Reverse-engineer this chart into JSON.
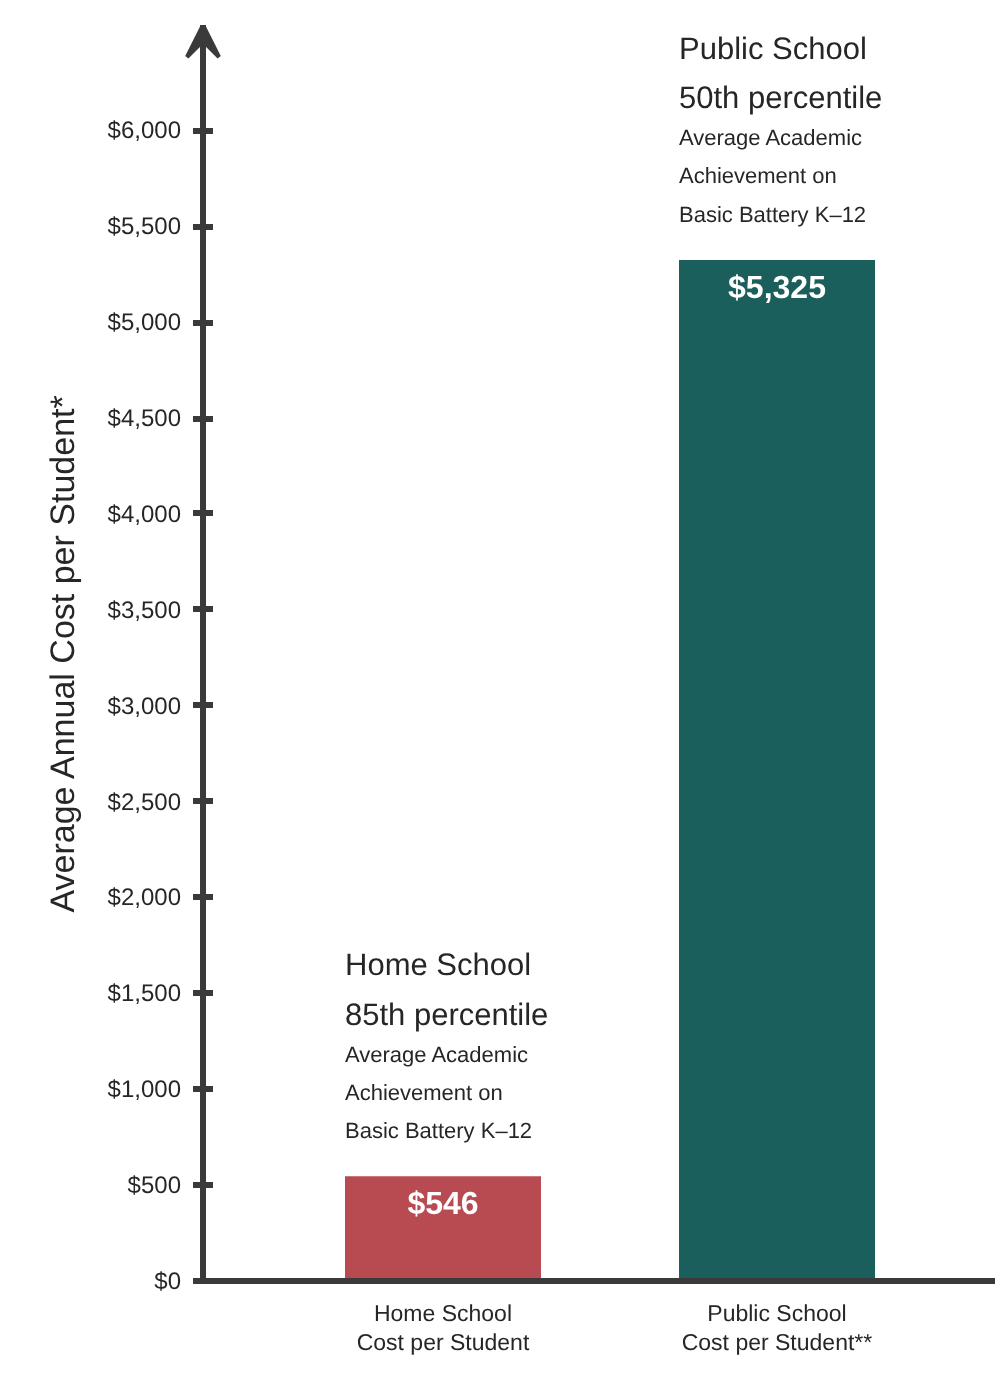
{
  "chart_data": {
    "type": "bar",
    "ylabel": "Average Annual Cost per Student*",
    "categories": [
      "Home School\nCost per Student",
      "Public School\nCost per Student**"
    ],
    "values": [
      546,
      5325
    ],
    "colors": [
      "#b84a52",
      "#1b5f5c"
    ],
    "value_labels": [
      "$546",
      "$5,325"
    ],
    "ylim": [
      0,
      6550
    ],
    "yticks": [
      {
        "value": 0,
        "label": "$0"
      },
      {
        "value": 500,
        "label": "$500"
      },
      {
        "value": 1000,
        "label": "$1,000"
      },
      {
        "value": 1500,
        "label": "$1,500"
      },
      {
        "value": 2000,
        "label": "$2,000"
      },
      {
        "value": 2500,
        "label": "$2,500"
      },
      {
        "value": 3000,
        "label": "$3,000"
      },
      {
        "value": 3500,
        "label": "$3,500"
      },
      {
        "value": 4000,
        "label": "$4,000"
      },
      {
        "value": 4500,
        "label": "$4,500"
      },
      {
        "value": 5000,
        "label": "$5,000"
      },
      {
        "value": 5500,
        "label": "$5,500"
      },
      {
        "value": 6000,
        "label": "$6,000"
      }
    ],
    "annotations": [
      "Home School\n85th percentile",
      {
        "text": "Average Academic\nAchievement on\nBasic Battery K–12",
        "x": "Home School\nCost per Student",
        "y": 546
      },
      "Public School\n50th percentile",
      {
        "text": "Average Academic\nAchievement on\nBasic Battery K–12",
        "x": "Public School\nCost per Student**",
        "y": 5325
      }
    ],
    "grid": false
  }
}
